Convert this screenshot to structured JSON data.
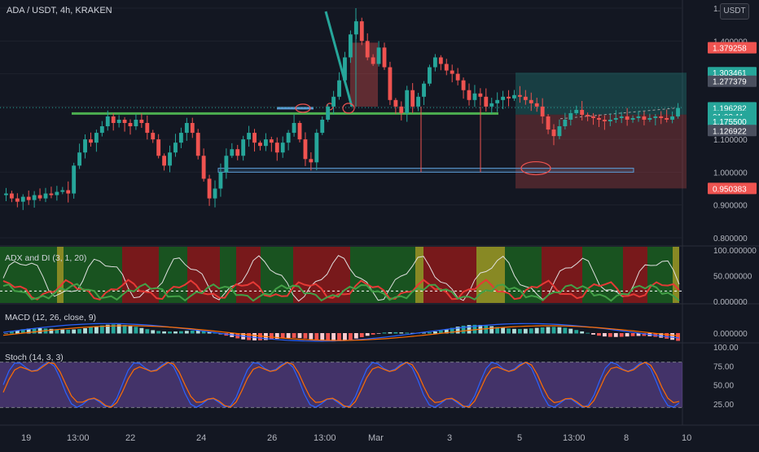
{
  "header": {
    "title": "ADA / USDT, 4h, KRAKEN",
    "currency": "USDT"
  },
  "colors": {
    "up": "#26a69a",
    "down": "#ef5350",
    "bg": "#131722",
    "grid": "#1e222d"
  },
  "price_axis": {
    "ticks": [
      "1.500000",
      "1.400000",
      "1.300000",
      "1.200000",
      "1.100000",
      "1.000000",
      "0.900000",
      "0.800000"
    ],
    "tick_values": [
      1.5,
      1.4,
      1.3,
      1.2,
      1.1,
      1.0,
      0.9,
      0.8
    ],
    "tags": [
      {
        "text": "1.379258",
        "value": 1.379258,
        "color": "#ef5350"
      },
      {
        "text": "1.303461",
        "value": 1.303461,
        "color": "#26a69a"
      },
      {
        "text": "1.277379",
        "value": 1.277379,
        "color": "#4a4f5e"
      },
      {
        "text": "1.196282",
        "value": 1.196282,
        "color": "#26a69a"
      },
      {
        "text": "01:03:11",
        "value": 1.17,
        "color": "#26a69a"
      },
      {
        "text": "1.175500",
        "value": 1.1555,
        "color": "#26a69a"
      },
      {
        "text": "1.126922",
        "value": 1.126922,
        "color": "#4a4f5e"
      },
      {
        "text": "0.950383",
        "value": 0.950383,
        "color": "#ef5350"
      }
    ]
  },
  "time_axis": [
    "19",
    "13:00",
    "22",
    "24",
    "26",
    "13:00",
    "Mar",
    "3",
    "5",
    "13:00",
    "8",
    "10"
  ],
  "indicators": {
    "adx": {
      "title": "ADX and DI (3, 1, 20)",
      "ticks": [
        "100.000000",
        "50.000000",
        "0.000000"
      ],
      "tick_values": [
        100,
        50,
        0
      ]
    },
    "macd": {
      "title": "MACD (12, 26, close, 9)",
      "ticks": [
        "0.000000"
      ],
      "tick_values": [
        0
      ]
    },
    "stoch": {
      "title": "Stoch (14, 3, 3)",
      "ticks": [
        "100.00",
        "75.00",
        "50.00",
        "25.00"
      ],
      "tick_values": [
        100,
        75,
        50,
        25
      ]
    }
  },
  "chart_data": {
    "type": "candlestick",
    "symbol": "ADA / USDT",
    "interval": "4h",
    "exchange": "KRAKEN",
    "ylim": [
      0.78,
      1.52
    ],
    "closes": [
      0.935,
      0.92,
      0.91,
      0.925,
      0.915,
      0.93,
      0.92,
      0.935,
      0.93,
      0.94,
      0.945,
      0.935,
      1.02,
      1.06,
      1.1,
      1.09,
      1.12,
      1.14,
      1.17,
      1.15,
      1.16,
      1.15,
      1.14,
      1.16,
      1.15,
      1.12,
      1.1,
      1.05,
      1.02,
      1.06,
      1.09,
      1.12,
      1.15,
      1.12,
      1.05,
      0.98,
      0.92,
      0.95,
      1.0,
      1.05,
      1.07,
      1.05,
      1.1,
      1.12,
      1.09,
      1.08,
      1.1,
      1.09,
      1.06,
      1.09,
      1.12,
      1.15,
      1.1,
      1.04,
      1.03,
      1.12,
      1.16,
      1.2,
      1.23,
      1.28,
      1.35,
      1.42,
      1.46,
      1.4,
      1.35,
      1.33,
      1.38,
      1.32,
      1.22,
      1.2,
      1.18,
      1.25,
      1.2,
      1.23,
      1.27,
      1.32,
      1.35,
      1.33,
      1.31,
      1.3,
      1.28,
      1.25,
      1.22,
      1.24,
      1.23,
      1.2,
      1.21,
      1.22,
      1.23,
      1.225,
      1.235,
      1.23,
      1.22,
      1.21,
      1.2,
      1.17,
      1.13,
      1.11,
      1.14,
      1.16,
      1.18,
      1.19,
      1.175,
      1.17,
      1.165,
      1.16,
      1.155,
      1.16,
      1.165,
      1.17,
      1.16,
      1.165,
      1.17,
      1.16,
      1.165,
      1.17,
      1.165,
      1.16,
      1.17,
      1.196
    ],
    "marker_count": 120,
    "levels": [
      {
        "name": "resistance",
        "value": 1.179,
        "color": "#4caf50"
      },
      {
        "name": "support-zone",
        "value": 1.005,
        "color": "#5b9bd5"
      }
    ],
    "position": {
      "entry": 1.1755,
      "target": 1.303461,
      "stop": 0.950383
    }
  }
}
